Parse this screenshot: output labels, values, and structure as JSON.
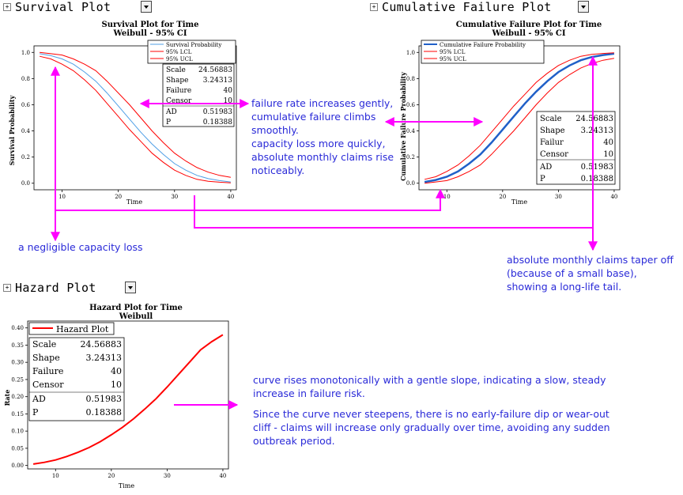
{
  "panels": {
    "survival": {
      "header": "Survival Plot",
      "title": "Survival Plot for Time",
      "subtitle": "Weibull - 95% CI",
      "ylabel": "Survival Probability",
      "xlabel": "Time"
    },
    "cumulative": {
      "header": "Cumulative Failure Plot",
      "title": "Cumulative Failure Plot for Time",
      "subtitle": "Weibull - 95% CI",
      "ylabel": "Cumulative Failure Probability",
      "xlabel": "Time"
    },
    "hazard": {
      "header": "Hazard Plot",
      "title": "Hazard Plot for Time",
      "subtitle": "Weibull",
      "ylabel": "Rate",
      "xlabel": "Time"
    }
  },
  "stats": {
    "survival": [
      [
        "Scale",
        "24.56883"
      ],
      [
        "Shape",
        "3.24313"
      ],
      [
        "Failure",
        "40"
      ],
      [
        "Censor",
        "10"
      ],
      [
        "AD",
        "0.51983"
      ],
      [
        "P",
        "0.18388"
      ]
    ],
    "cumulative": [
      [
        "Scale",
        "24.56883"
      ],
      [
        "Shape",
        "3.24313"
      ],
      [
        "Failur",
        "40"
      ],
      [
        "Censor",
        "10"
      ],
      [
        "AD",
        "0.51983"
      ],
      [
        "P",
        "0.18388"
      ]
    ],
    "hazard": [
      [
        "Scale",
        "24.56883"
      ],
      [
        "Shape",
        "3.24313"
      ],
      [
        "Failure",
        "40"
      ],
      [
        "Censor",
        "10"
      ],
      [
        "AD",
        "0.51983"
      ],
      [
        "P",
        "0.18388"
      ]
    ]
  },
  "annotations": {
    "middle": [
      "failure rate increases gently,",
      "cumulative failure climbs",
      "smoothly.",
      "capacity loss more quickly,",
      "absolute monthly claims rise",
      "noticeably."
    ],
    "left": "a negligible capacity loss",
    "right": [
      "absolute monthly claims taper off",
      "(because of a small base),",
      "showing a long-life tail."
    ],
    "hazard_1": [
      "curve rises monotonically with a gentle slope, indicating a slow, steady",
      "increase in failure risk."
    ],
    "hazard_2": [
      "Since the curve never steepens, there is no early-failure dip or wear-out",
      "cliff - claims will increase only gradually over time, avoiding any sudden",
      "outbreak period."
    ]
  },
  "colors": {
    "annotation_text": "#2a2ad8",
    "arrow": "#ff00ff",
    "ci_band": "#ff0000",
    "survival_line": "#4f9fe6",
    "cumulative_line": "#2060c8",
    "hazard_line": "#ff0000"
  },
  "chart_data": [
    {
      "type": "line",
      "title": "Survival Plot for Time",
      "subtitle": "Weibull - 95% CI",
      "xlabel": "Time",
      "ylabel": "Survival Probability",
      "xlim": [
        5,
        41
      ],
      "ylim": [
        -0.05,
        1.05
      ],
      "xticks": [
        10,
        20,
        30,
        40
      ],
      "yticks": [
        0.0,
        0.2,
        0.4,
        0.6,
        0.8,
        1.0
      ],
      "series": [
        {
          "name": "Survival Probability",
          "x": [
            6,
            8,
            10,
            12,
            14,
            16,
            18,
            20,
            22,
            24,
            26,
            28,
            30,
            32,
            34,
            36,
            38,
            40
          ],
          "values": [
            0.99,
            0.975,
            0.95,
            0.91,
            0.85,
            0.78,
            0.69,
            0.59,
            0.49,
            0.39,
            0.3,
            0.22,
            0.15,
            0.1,
            0.06,
            0.035,
            0.02,
            0.01
          ]
        },
        {
          "name": "95% LCL",
          "x": [
            6,
            8,
            10,
            12,
            14,
            16,
            18,
            20,
            22,
            24,
            26,
            28,
            30,
            32,
            34,
            36,
            38,
            40
          ],
          "values": [
            0.97,
            0.95,
            0.91,
            0.86,
            0.79,
            0.71,
            0.61,
            0.51,
            0.41,
            0.32,
            0.23,
            0.16,
            0.1,
            0.06,
            0.03,
            0.015,
            0.008,
            0.003
          ]
        },
        {
          "name": "95% UCL",
          "x": [
            6,
            8,
            10,
            12,
            14,
            16,
            18,
            20,
            22,
            24,
            26,
            28,
            30,
            32,
            34,
            36,
            38,
            40
          ],
          "values": [
            1.0,
            0.99,
            0.98,
            0.95,
            0.91,
            0.86,
            0.78,
            0.69,
            0.6,
            0.5,
            0.4,
            0.31,
            0.23,
            0.17,
            0.12,
            0.085,
            0.06,
            0.045
          ]
        }
      ]
    },
    {
      "type": "line",
      "title": "Cumulative Failure Plot for Time",
      "subtitle": "Weibull - 95% CI",
      "xlabel": "Time",
      "ylabel": "Cumulative Failure Probability",
      "xlim": [
        5,
        41
      ],
      "ylim": [
        -0.05,
        1.05
      ],
      "xticks": [
        10,
        20,
        30,
        40
      ],
      "yticks": [
        0.0,
        0.2,
        0.4,
        0.6,
        0.8,
        1.0
      ],
      "series": [
        {
          "name": "Cumulative Failure Probability",
          "x": [
            6,
            8,
            10,
            12,
            14,
            16,
            18,
            20,
            22,
            24,
            26,
            28,
            30,
            32,
            34,
            36,
            38,
            40
          ],
          "values": [
            0.01,
            0.025,
            0.05,
            0.09,
            0.15,
            0.22,
            0.31,
            0.41,
            0.51,
            0.61,
            0.7,
            0.78,
            0.85,
            0.9,
            0.94,
            0.965,
            0.98,
            0.99
          ]
        },
        {
          "name": "95% LCL",
          "x": [
            6,
            8,
            10,
            12,
            14,
            16,
            18,
            20,
            22,
            24,
            26,
            28,
            30,
            32,
            34,
            36,
            38,
            40
          ],
          "values": [
            0.0,
            0.01,
            0.02,
            0.05,
            0.09,
            0.14,
            0.22,
            0.31,
            0.4,
            0.5,
            0.6,
            0.69,
            0.77,
            0.83,
            0.88,
            0.915,
            0.94,
            0.955
          ]
        },
        {
          "name": "95% UCL",
          "x": [
            6,
            8,
            10,
            12,
            14,
            16,
            18,
            20,
            22,
            24,
            26,
            28,
            30,
            32,
            34,
            36,
            38,
            40
          ],
          "values": [
            0.03,
            0.05,
            0.09,
            0.14,
            0.21,
            0.29,
            0.39,
            0.49,
            0.59,
            0.68,
            0.77,
            0.84,
            0.9,
            0.94,
            0.97,
            0.985,
            0.992,
            0.997
          ]
        }
      ]
    },
    {
      "type": "line",
      "title": "Hazard Plot for Time",
      "subtitle": "Weibull",
      "xlabel": "Time",
      "ylabel": "Rate",
      "xlim": [
        5,
        41
      ],
      "ylim": [
        -0.01,
        0.42
      ],
      "xticks": [
        10,
        20,
        30,
        40
      ],
      "yticks": [
        0.0,
        0.05,
        0.1,
        0.15,
        0.2,
        0.25,
        0.3,
        0.35,
        0.4
      ],
      "series": [
        {
          "name": "Hazard Plot",
          "x": [
            6,
            8,
            10,
            12,
            14,
            16,
            18,
            20,
            22,
            24,
            26,
            28,
            30,
            32,
            34,
            36,
            38,
            40
          ],
          "values": [
            0.004,
            0.009,
            0.016,
            0.026,
            0.038,
            0.052,
            0.069,
            0.089,
            0.111,
            0.136,
            0.164,
            0.194,
            0.228,
            0.264,
            0.3,
            0.336,
            0.36,
            0.38
          ]
        }
      ]
    }
  ]
}
